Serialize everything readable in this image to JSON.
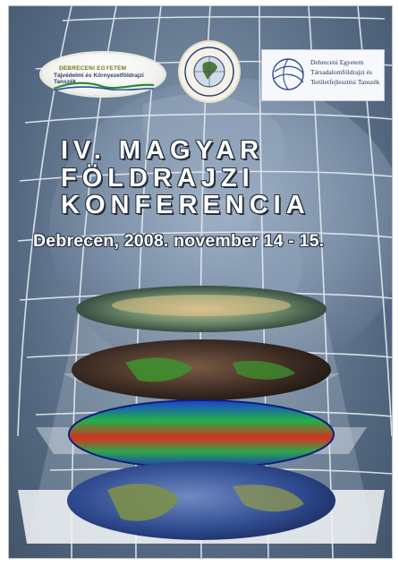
{
  "logos": {
    "left": {
      "line1": "DEBRECENI EGYETEM",
      "line2": "Tájvédelmi és Környezetföldrajzi Tanszék"
    },
    "middle": {
      "ring_top": "Meteorológiai és Geoinformatikai Tanszék",
      "ring_bottom": "Debrecen Egyetem"
    },
    "right": {
      "line1": "Debreceni Egyetem",
      "line2": "Társadalomföldrajzi és",
      "line3": "Területfejlesztési Tanszék"
    }
  },
  "title": {
    "line1": "IV. MAGYAR",
    "line2": "FÖLDRAJZI",
    "line3": "KONFERENCIA"
  },
  "subtitle": "Debrecen, 2008. november 14 - 15.",
  "colors": {
    "background": "#6f8399",
    "title_text": "#ffffff",
    "title_outline": "#25303f"
  }
}
